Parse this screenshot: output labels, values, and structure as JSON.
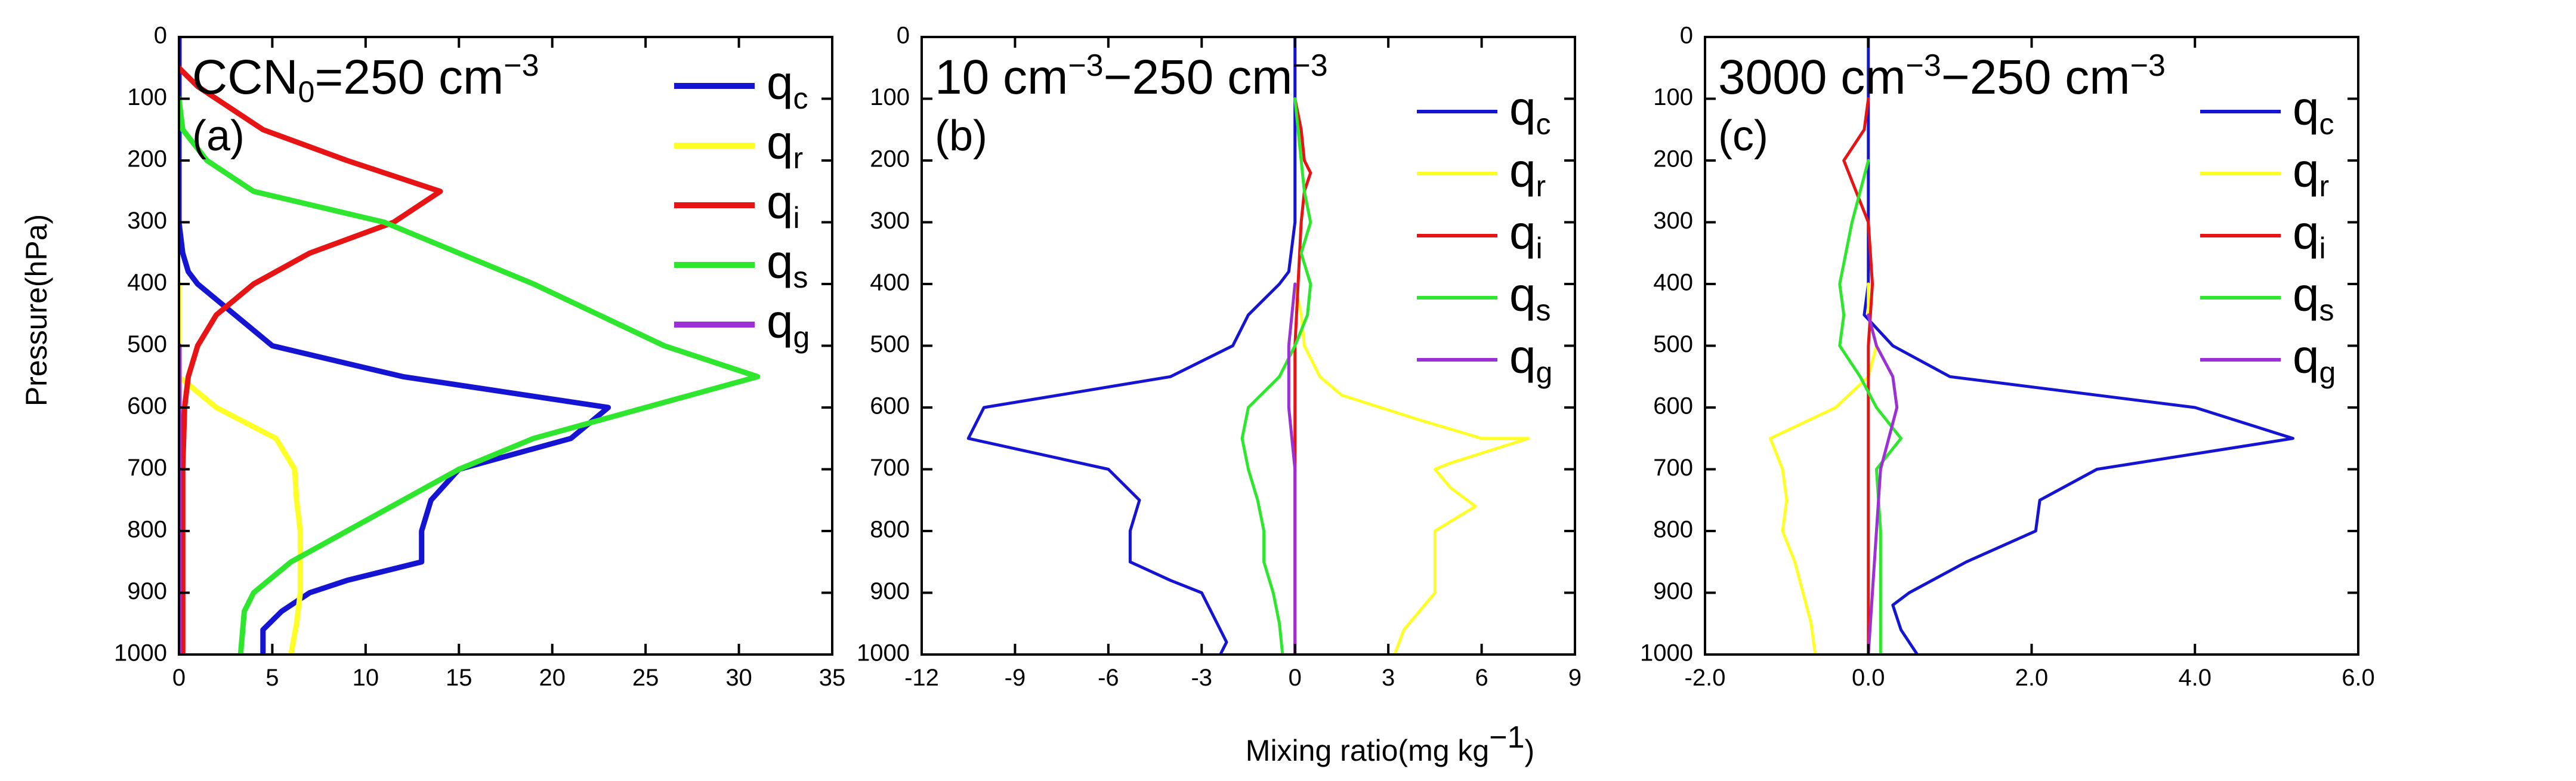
{
  "figure": {
    "ylabel": "Pressure(hPa)",
    "xlabel": "Mixing ratio(mg kg",
    "xlabel_sup": "−1",
    "xlabel_end": ")"
  },
  "chart_data": [
    {
      "type": "line",
      "panel": "(a)",
      "title": {
        "prefix": "CCN",
        "sub": "0",
        "mid": "=250 cm",
        "sup": "−3",
        "suffix": ""
      },
      "xlim": [
        0,
        35
      ],
      "ylim": [
        0,
        1000
      ],
      "y_inverted": true,
      "xticks": [
        0,
        5,
        10,
        15,
        20,
        25,
        30,
        35
      ],
      "xtick_labels": [
        "0",
        "5",
        "10",
        "15",
        "20",
        "25",
        "30",
        "35"
      ],
      "yticks": [
        0,
        100,
        200,
        300,
        400,
        500,
        600,
        700,
        800,
        900,
        1000
      ],
      "ytick_labels": [
        "0",
        "100",
        "200",
        "300",
        "400",
        "500",
        "600",
        "700",
        "800",
        "900",
        "1000"
      ],
      "legend_position": "top-right",
      "series": [
        {
          "name": "q",
          "sub": "c",
          "color": "#1414d2",
          "width": 9,
          "points": [
            [
              0,
              0
            ],
            [
              0,
              50
            ],
            [
              0,
              100
            ],
            [
              0,
              200
            ],
            [
              0,
              300
            ],
            [
              0.2,
              350
            ],
            [
              0.5,
              380
            ],
            [
              1,
              400
            ],
            [
              5,
              500
            ],
            [
              12,
              550
            ],
            [
              23,
              600
            ],
            [
              21,
              650
            ],
            [
              15,
              700
            ],
            [
              13.5,
              750
            ],
            [
              13,
              800
            ],
            [
              13,
              850
            ],
            [
              9,
              880
            ],
            [
              7,
              900
            ],
            [
              5.5,
              930
            ],
            [
              4.5,
              960
            ],
            [
              4.5,
              1000
            ]
          ]
        },
        {
          "name": "q",
          "sub": "r",
          "color": "#ffff28",
          "width": 9,
          "points": [
            [
              0,
              400
            ],
            [
              0,
              500
            ],
            [
              0,
              550
            ],
            [
              2,
              600
            ],
            [
              5.2,
              650
            ],
            [
              6.2,
              700
            ],
            [
              6.3,
              750
            ],
            [
              6.5,
              800
            ],
            [
              6.5,
              900
            ],
            [
              6.3,
              950
            ],
            [
              6.0,
              1000
            ]
          ]
        },
        {
          "name": "q",
          "sub": "i",
          "color": "#e61414",
          "width": 9,
          "points": [
            [
              0,
              50
            ],
            [
              1,
              80
            ],
            [
              4.5,
              150
            ],
            [
              9,
              200
            ],
            [
              14,
              250
            ],
            [
              11.5,
              300
            ],
            [
              7,
              350
            ],
            [
              4,
              400
            ],
            [
              2,
              450
            ],
            [
              1,
              500
            ],
            [
              0.5,
              550
            ],
            [
              0.3,
              600
            ],
            [
              0.2,
              700
            ],
            [
              0.2,
              800
            ],
            [
              0.2,
              1000
            ]
          ]
        },
        {
          "name": "q",
          "sub": "s",
          "color": "#2ee62e",
          "width": 9,
          "points": [
            [
              0,
              100
            ],
            [
              0.2,
              150
            ],
            [
              1.5,
              200
            ],
            [
              4,
              250
            ],
            [
              11,
              300
            ],
            [
              19,
              400
            ],
            [
              26,
              500
            ],
            [
              31,
              550
            ],
            [
              25,
              600
            ],
            [
              19,
              650
            ],
            [
              15,
              700
            ],
            [
              12,
              750
            ],
            [
              9,
              800
            ],
            [
              6,
              850
            ],
            [
              4,
              900
            ],
            [
              3.5,
              930
            ],
            [
              3.3,
              1000
            ]
          ]
        },
        {
          "name": "q",
          "sub": "g",
          "color": "#9b30d6",
          "width": 9,
          "points": [
            [
              0,
              500
            ],
            [
              0,
              1000
            ]
          ]
        }
      ]
    },
    {
      "type": "line",
      "panel": "(b)",
      "title": {
        "prefix": "10 cm",
        "sub": "",
        "mid": "",
        "sup": "−3",
        "suffix_pre": "−250 cm",
        "suffix_sup": "−3"
      },
      "xlim": [
        -12,
        9
      ],
      "ylim": [
        0,
        1000
      ],
      "y_inverted": true,
      "xticks": [
        -12,
        -9,
        -6,
        -3,
        0,
        3,
        6,
        9
      ],
      "xtick_labels": [
        "-12",
        "-9",
        "-6",
        "-3",
        "0",
        "3",
        "6",
        "9"
      ],
      "yticks": [
        0,
        100,
        200,
        300,
        400,
        500,
        600,
        700,
        800,
        900,
        1000
      ],
      "ytick_labels": [
        "0",
        "100",
        "200",
        "300",
        "400",
        "500",
        "600",
        "700",
        "800",
        "900",
        "1000"
      ],
      "legend_position": "top-right",
      "series": [
        {
          "name": "q",
          "sub": "c",
          "color": "#1414d2",
          "width": 5,
          "points": [
            [
              0,
              0
            ],
            [
              0,
              100
            ],
            [
              0,
              200
            ],
            [
              0,
              300
            ],
            [
              -0.2,
              380
            ],
            [
              -0.5,
              400
            ],
            [
              -1.5,
              450
            ],
            [
              -2,
              500
            ],
            [
              -4,
              550
            ],
            [
              -10,
              600
            ],
            [
              -10.5,
              650
            ],
            [
              -6,
              700
            ],
            [
              -5,
              750
            ],
            [
              -5.3,
              800
            ],
            [
              -5.3,
              850
            ],
            [
              -4,
              880
            ],
            [
              -3,
              900
            ],
            [
              -2.5,
              950
            ],
            [
              -2.2,
              980
            ],
            [
              -2.4,
              1000
            ]
          ]
        },
        {
          "name": "q",
          "sub": "r",
          "color": "#ffff28",
          "width": 5,
          "points": [
            [
              0,
              400
            ],
            [
              0.2,
              450
            ],
            [
              0.3,
              500
            ],
            [
              0.8,
              550
            ],
            [
              1.5,
              580
            ],
            [
              4,
              620
            ],
            [
              6,
              650
            ],
            [
              7.5,
              650
            ],
            [
              5,
              690
            ],
            [
              4.5,
              700
            ],
            [
              5,
              730
            ],
            [
              5.8,
              760
            ],
            [
              4.5,
              800
            ],
            [
              4.5,
              850
            ],
            [
              4.5,
              900
            ],
            [
              4,
              930
            ],
            [
              3.5,
              960
            ],
            [
              3.2,
              1000
            ]
          ]
        },
        {
          "name": "q",
          "sub": "i",
          "color": "#e61414",
          "width": 5,
          "points": [
            [
              0,
              100
            ],
            [
              0.2,
              150
            ],
            [
              0.3,
              200
            ],
            [
              0.5,
              220
            ],
            [
              0.3,
              250
            ],
            [
              0.2,
              300
            ],
            [
              0.1,
              400
            ],
            [
              0,
              500
            ],
            [
              0,
              1000
            ]
          ]
        },
        {
          "name": "q",
          "sub": "s",
          "color": "#2ee62e",
          "width": 5,
          "points": [
            [
              0,
              100
            ],
            [
              0.2,
              200
            ],
            [
              0.3,
              250
            ],
            [
              0.5,
              300
            ],
            [
              0.2,
              350
            ],
            [
              0.5,
              400
            ],
            [
              0.4,
              450
            ],
            [
              0,
              500
            ],
            [
              -0.5,
              550
            ],
            [
              -1.5,
              600
            ],
            [
              -1.7,
              650
            ],
            [
              -1.5,
              700
            ],
            [
              -1.2,
              750
            ],
            [
              -1,
              800
            ],
            [
              -1,
              850
            ],
            [
              -0.7,
              900
            ],
            [
              -0.5,
              950
            ],
            [
              -0.4,
              1000
            ]
          ]
        },
        {
          "name": "q",
          "sub": "g",
          "color": "#9b30d6",
          "width": 5,
          "points": [
            [
              0,
              400
            ],
            [
              -0.2,
              500
            ],
            [
              -0.2,
              600
            ],
            [
              0,
              700
            ],
            [
              0,
              1000
            ]
          ]
        }
      ]
    },
    {
      "type": "line",
      "panel": "(c)",
      "title": {
        "prefix": "3000 cm",
        "sup": "−3",
        "suffix_pre": "−250 cm",
        "suffix_sup": "−3"
      },
      "xlim": [
        -2,
        6
      ],
      "ylim": [
        0,
        1000
      ],
      "y_inverted": true,
      "xticks": [
        -2,
        0,
        2,
        4,
        6
      ],
      "xtick_labels": [
        "-2.0",
        "0.0",
        "2.0",
        "4.0",
        "6.0"
      ],
      "yticks": [
        0,
        100,
        200,
        300,
        400,
        500,
        600,
        700,
        800,
        900,
        1000
      ],
      "ytick_labels": [
        "0",
        "100",
        "200",
        "300",
        "400",
        "500",
        "600",
        "700",
        "800",
        "900",
        "1000"
      ],
      "legend_position": "top-right",
      "series": [
        {
          "name": "q",
          "sub": "c",
          "color": "#1414d2",
          "width": 5,
          "points": [
            [
              0,
              0
            ],
            [
              0,
              100
            ],
            [
              0,
              200
            ],
            [
              0,
              300
            ],
            [
              0,
              400
            ],
            [
              -0.05,
              450
            ],
            [
              0.3,
              500
            ],
            [
              1,
              550
            ],
            [
              4,
              600
            ],
            [
              5.2,
              650
            ],
            [
              2.8,
              700
            ],
            [
              2.1,
              750
            ],
            [
              2.05,
              800
            ],
            [
              1.2,
              850
            ],
            [
              0.5,
              900
            ],
            [
              0.3,
              920
            ],
            [
              0.4,
              960
            ],
            [
              0.6,
              1000
            ]
          ]
        },
        {
          "name": "q",
          "sub": "r",
          "color": "#ffff28",
          "width": 5,
          "points": [
            [
              0,
              400
            ],
            [
              0,
              450
            ],
            [
              0.1,
              500
            ],
            [
              0,
              550
            ],
            [
              -0.4,
              600
            ],
            [
              -1.2,
              650
            ],
            [
              -1.05,
              700
            ],
            [
              -1,
              750
            ],
            [
              -1.05,
              800
            ],
            [
              -0.9,
              850
            ],
            [
              -0.8,
              900
            ],
            [
              -0.7,
              950
            ],
            [
              -0.65,
              1000
            ]
          ]
        },
        {
          "name": "q",
          "sub": "i",
          "color": "#e61414",
          "width": 5,
          "points": [
            [
              0,
              100
            ],
            [
              -0.05,
              150
            ],
            [
              -0.3,
              200
            ],
            [
              -0.15,
              250
            ],
            [
              0,
              300
            ],
            [
              0.05,
              400
            ],
            [
              0,
              500
            ],
            [
              0,
              1000
            ]
          ]
        },
        {
          "name": "q",
          "sub": "s",
          "color": "#2ee62e",
          "width": 5,
          "points": [
            [
              0,
              200
            ],
            [
              -0.2,
              300
            ],
            [
              -0.35,
              400
            ],
            [
              -0.3,
              450
            ],
            [
              -0.35,
              500
            ],
            [
              -0.1,
              550
            ],
            [
              0.1,
              600
            ],
            [
              0.4,
              650
            ],
            [
              0.1,
              700
            ],
            [
              0.15,
              800
            ],
            [
              0.15,
              900
            ],
            [
              0.15,
              1000
            ]
          ]
        },
        {
          "name": "q",
          "sub": "g",
          "color": "#9b30d6",
          "width": 5,
          "points": [
            [
              0,
              450
            ],
            [
              0.1,
              500
            ],
            [
              0.3,
              550
            ],
            [
              0.35,
              600
            ],
            [
              0.25,
              650
            ],
            [
              0.15,
              700
            ],
            [
              0.1,
              800
            ],
            [
              0.05,
              900
            ],
            [
              0,
              1000
            ]
          ]
        }
      ]
    }
  ]
}
